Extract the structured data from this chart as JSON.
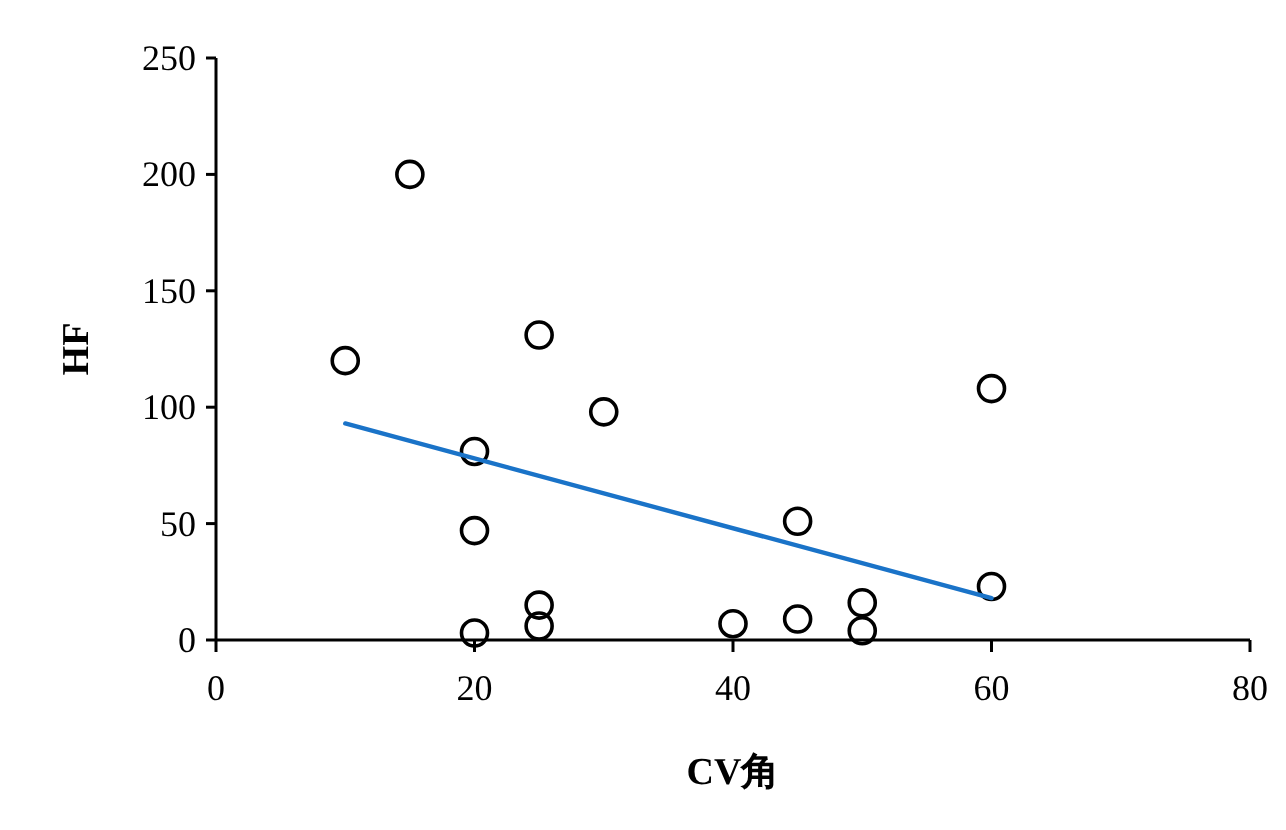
{
  "chart_data": {
    "type": "scatter",
    "xlabel": "CV角",
    "ylabel": "HF",
    "xlim": [
      0,
      80
    ],
    "xticks": [
      0,
      20,
      40,
      60,
      80
    ],
    "ylim": [
      0,
      250
    ],
    "yticks": [
      0,
      50,
      100,
      150,
      200,
      250
    ],
    "grid": false,
    "series": [
      {
        "color": "#000000",
        "marker": "circle",
        "x": [
          10,
          15,
          20,
          20,
          20,
          25,
          25,
          25,
          30,
          40,
          45,
          45,
          50,
          50,
          60,
          60
        ],
        "values": [
          120,
          200,
          81,
          47,
          3,
          131,
          15,
          6,
          98,
          7,
          51,
          9,
          16,
          4,
          108,
          23
        ]
      },
      {
        "type": "line",
        "color": "#1a73c8",
        "marker": "none",
        "line_style": "solid",
        "x": [
          10,
          60
        ],
        "values": [
          93,
          18
        ]
      }
    ]
  }
}
